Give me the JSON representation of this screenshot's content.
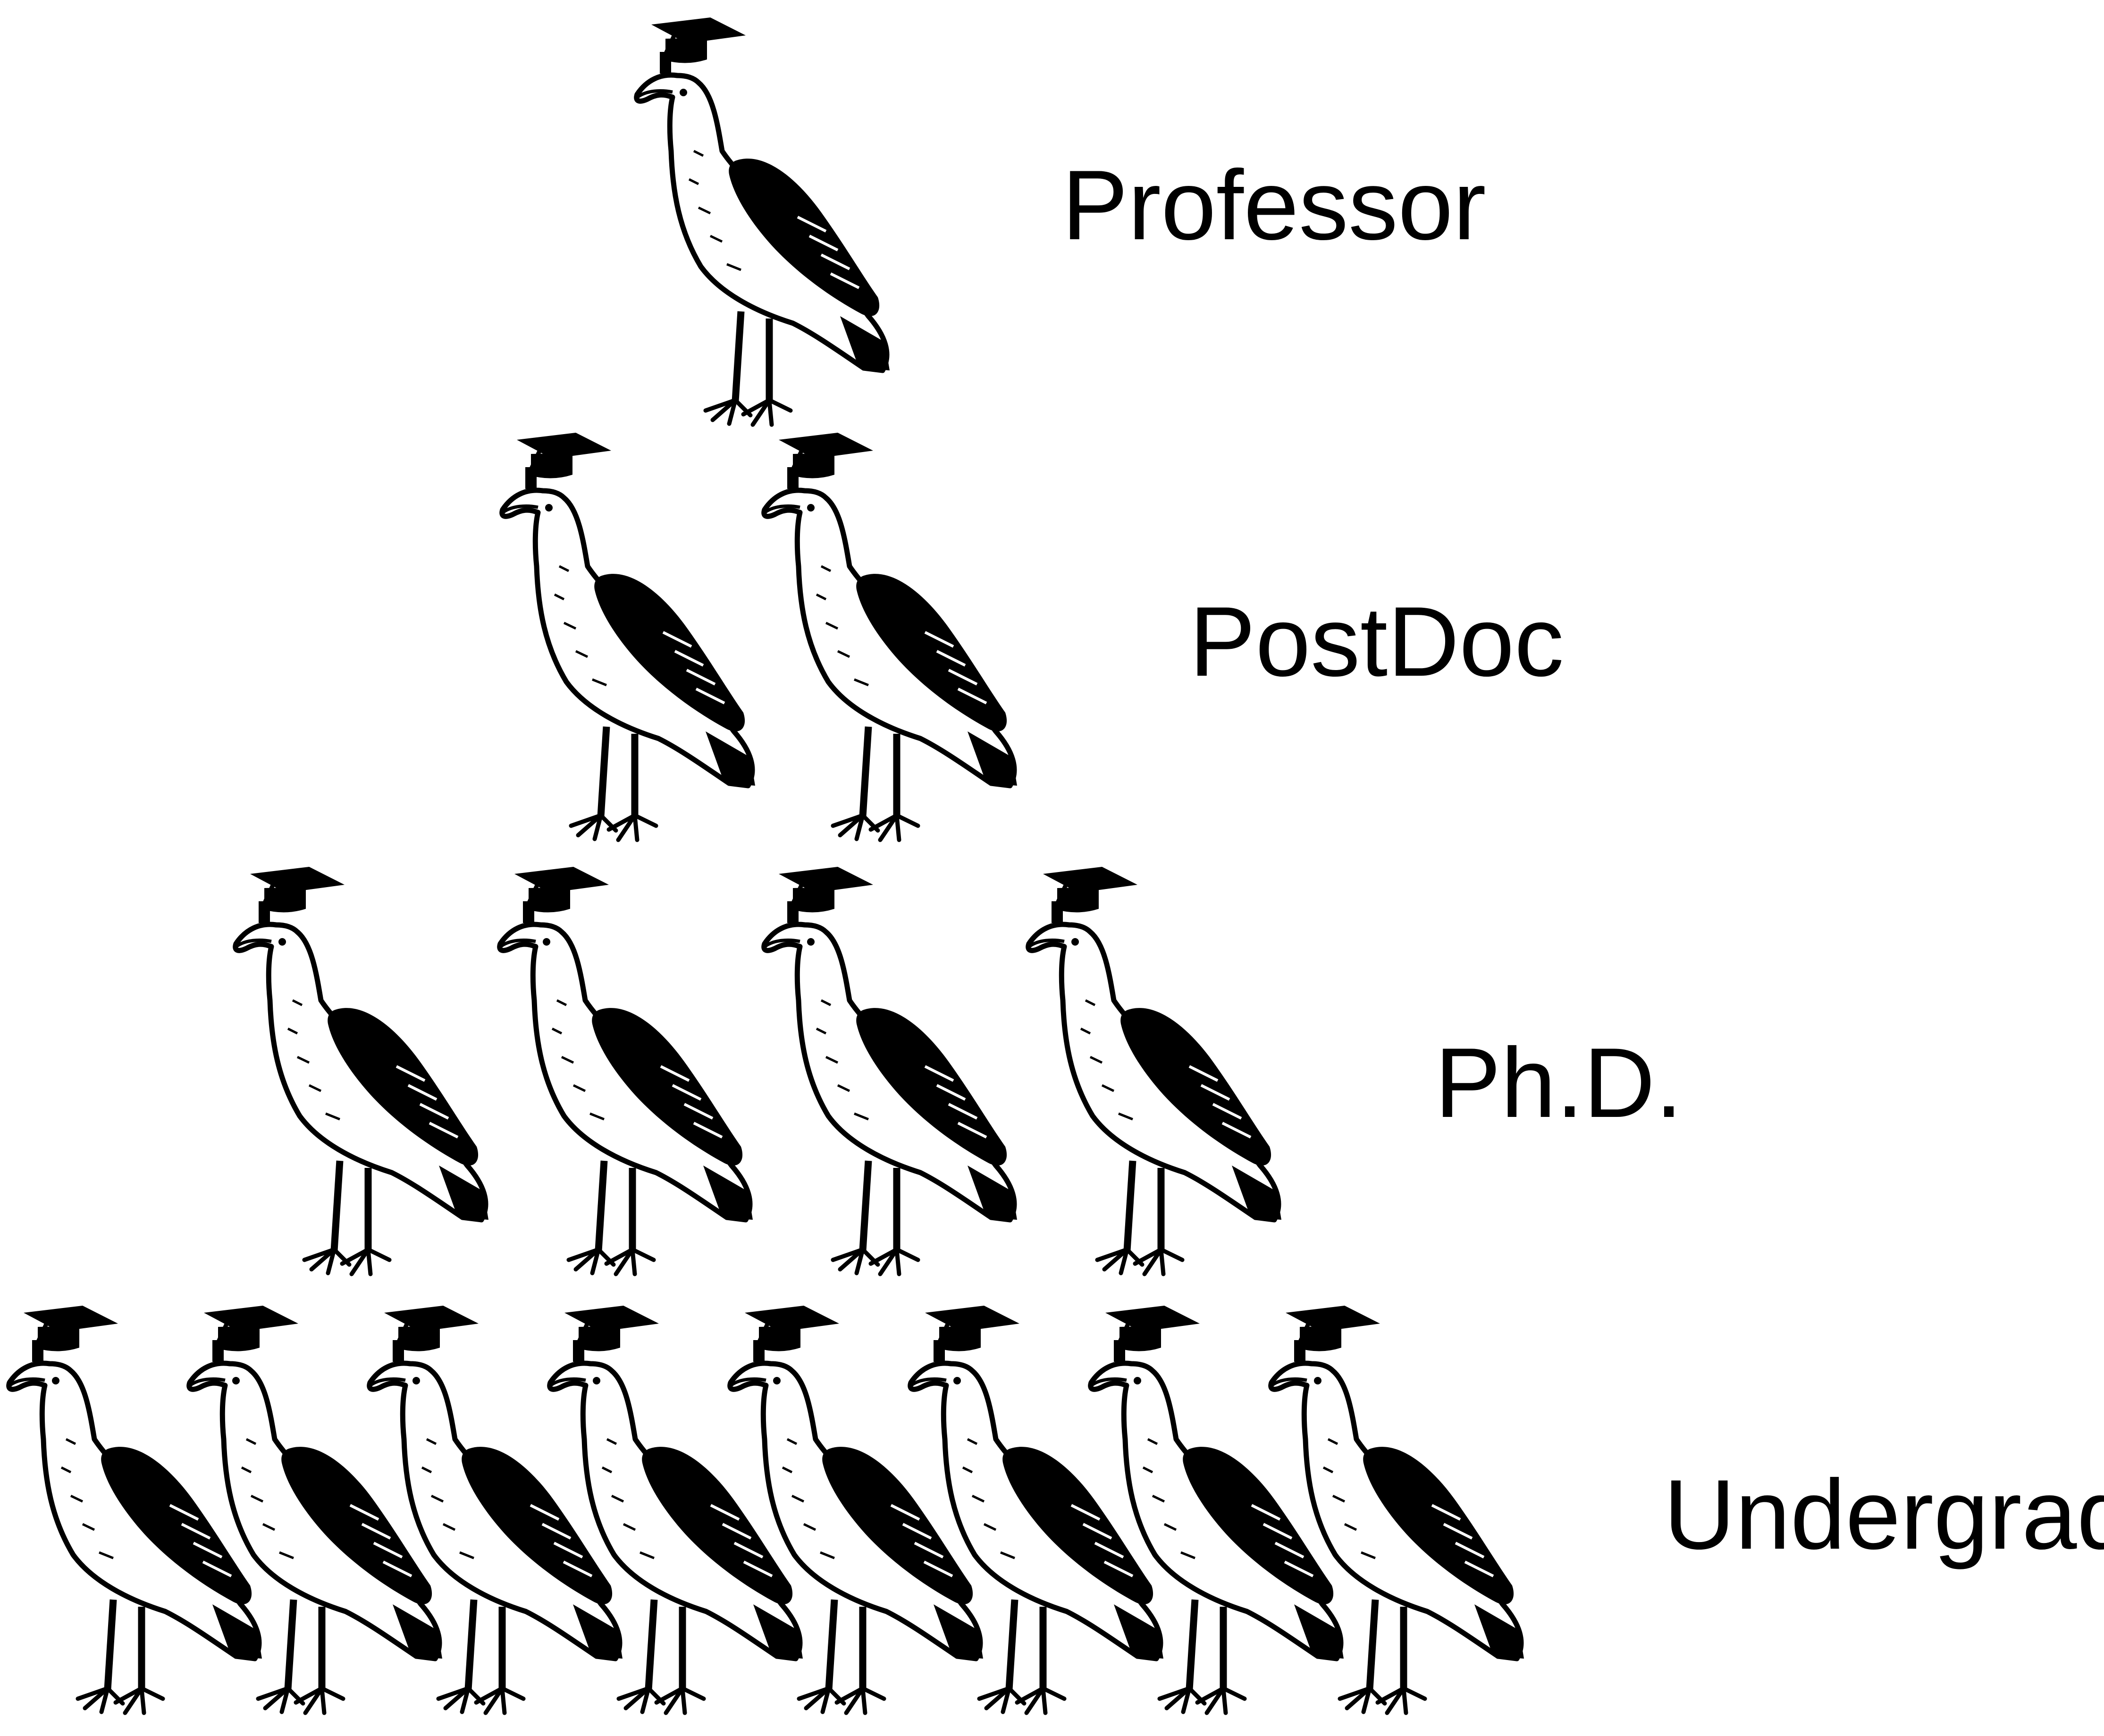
{
  "diagram": {
    "type": "academic-hierarchy-pyramid",
    "tiers": [
      {
        "label": "Professor",
        "count": 1
      },
      {
        "label": "PostDoc",
        "count": 2
      },
      {
        "label": "Ph.D.",
        "count": 4
      },
      {
        "label": "Undergrad",
        "count": 8
      }
    ],
    "colors": {
      "background": "#ffffff",
      "ink": "#000000"
    },
    "icons": {
      "figure": "gull-with-mortarboard-icon"
    }
  }
}
